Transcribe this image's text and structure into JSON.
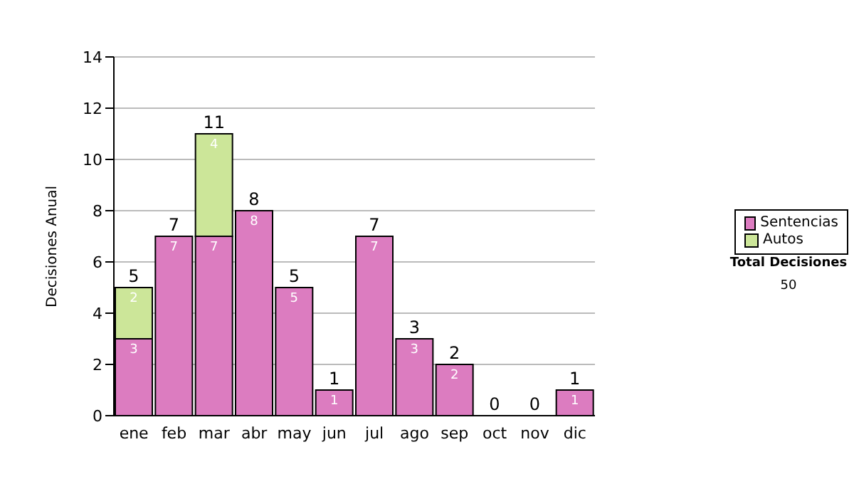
{
  "chart_data": {
    "type": "bar",
    "stacked": true,
    "ylabel": "Decisiones Anual",
    "categories": [
      "ene",
      "feb",
      "mar",
      "abr",
      "may",
      "jun",
      "jul",
      "ago",
      "sep",
      "oct",
      "nov",
      "dic"
    ],
    "series": [
      {
        "name": "Sentencias",
        "color": "#dc7cc0",
        "values": [
          3,
          7,
          7,
          8,
          5,
          1,
          7,
          3,
          2,
          0,
          0,
          1
        ],
        "value_labels": [
          "3",
          "7",
          "7",
          "8",
          "5",
          "1",
          "7",
          "3",
          "2",
          null,
          null,
          "1"
        ]
      },
      {
        "name": "Autos",
        "color": "#cce699",
        "values": [
          2,
          0,
          4,
          0,
          0,
          0,
          0,
          0,
          0,
          0,
          0,
          0
        ],
        "value_labels": [
          "2",
          null,
          "4",
          null,
          null,
          null,
          null,
          null,
          null,
          null,
          null,
          null
        ]
      }
    ],
    "totals": [
      "5",
      "7",
      "11",
      "8",
      "5",
      "1",
      "7",
      "3",
      "2",
      "0",
      "0",
      "1"
    ],
    "ylim": [
      0,
      14
    ],
    "yticks": [
      0,
      2,
      4,
      6,
      8,
      10,
      12,
      14
    ],
    "grid": "y",
    "legend": "right",
    "annotations": [
      "Total Decisiones",
      "50"
    ]
  }
}
